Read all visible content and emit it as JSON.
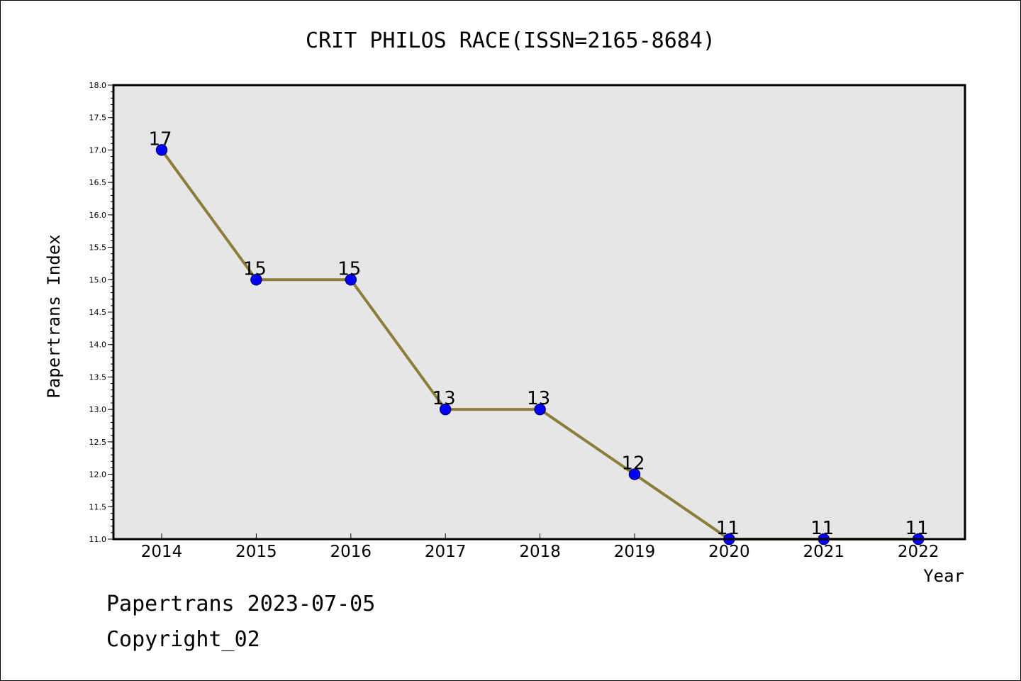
{
  "chart_data": {
    "type": "line",
    "title": "CRIT PHILOS RACE(ISSN=2165-8684)",
    "xlabel": "Year",
    "ylabel": "Papertrans Index",
    "categories": [
      "2014",
      "2015",
      "2016",
      "2017",
      "2018",
      "2019",
      "2020",
      "2021",
      "2022"
    ],
    "values": [
      17,
      15,
      15,
      13,
      13,
      12,
      11,
      11,
      11
    ],
    "data_labels": [
      "17",
      "15",
      "15",
      "13",
      "13",
      "12",
      "11",
      "11",
      "11"
    ],
    "ylim": [
      11.0,
      18.0
    ],
    "y_ticks": [
      "11.0",
      "11.5",
      "12.0",
      "12.5",
      "13.0",
      "13.5",
      "14.0",
      "14.5",
      "15.0",
      "15.5",
      "16.0",
      "16.5",
      "17.0",
      "17.5",
      "18.0"
    ],
    "grid": false,
    "legend": "none",
    "colors": {
      "line": "#8b7d3a",
      "marker_fill": "#0000ff",
      "marker_edge": "#000080",
      "plot_background": "#e6e6e6"
    }
  },
  "footer": {
    "source": "Papertrans 2023-07-05",
    "copyright": "Copyright_02"
  }
}
